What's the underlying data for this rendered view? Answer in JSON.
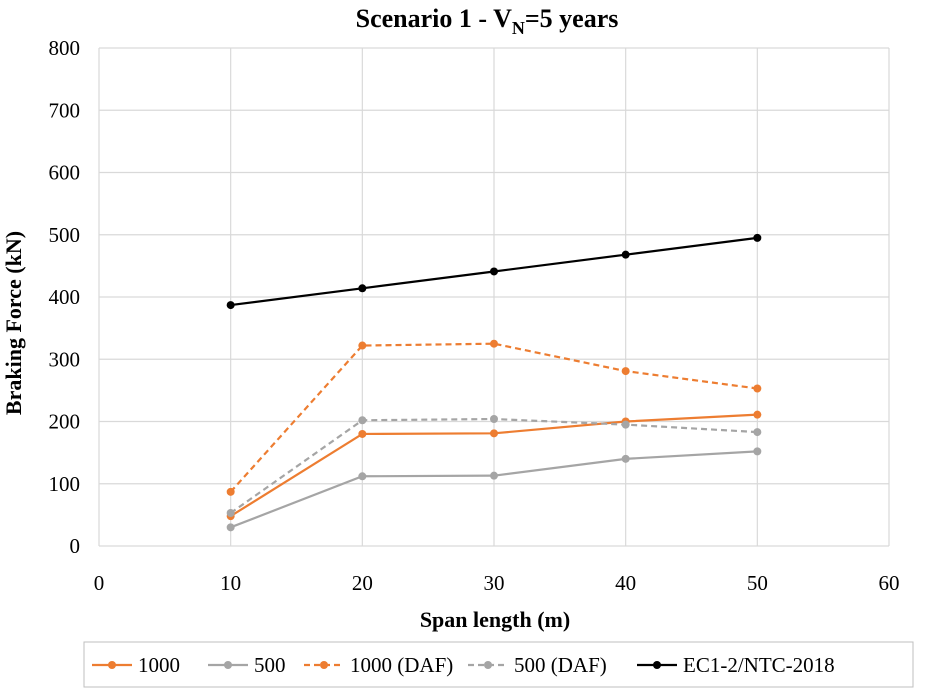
{
  "chart_data": {
    "type": "line",
    "title": "Scenario 1 - V",
    "title_subscript": "N",
    "title_suffix": "=5 years",
    "xlabel": "Span length (m)",
    "ylabel": "Braking Force (kN)",
    "xlim": [
      0,
      60
    ],
    "ylim": [
      0,
      800
    ],
    "xticks": [
      0,
      10,
      20,
      30,
      40,
      50,
      60
    ],
    "yticks": [
      0,
      100,
      200,
      300,
      400,
      500,
      600,
      700,
      800
    ],
    "grid": true,
    "legend_position": "bottom",
    "x": [
      10,
      20,
      30,
      40,
      50
    ],
    "series": [
      {
        "name": "1000",
        "values": [
          48,
          180,
          181,
          200,
          211
        ],
        "color": "#ed7d31",
        "dash": "solid"
      },
      {
        "name": "500",
        "values": [
          30,
          112,
          113,
          140,
          152
        ],
        "color": "#a5a5a5",
        "dash": "solid"
      },
      {
        "name": "1000 (DAF)",
        "values": [
          87,
          322,
          325,
          281,
          253
        ],
        "color": "#ed7d31",
        "dash": "dashed"
      },
      {
        "name": "500 (DAF)",
        "values": [
          53,
          202,
          204,
          195,
          183
        ],
        "color": "#a5a5a5",
        "dash": "dashed"
      },
      {
        "name": "EC1-2/NTC-2018",
        "values": [
          387,
          414,
          441,
          468,
          495
        ],
        "color": "#000000",
        "dash": "solid"
      }
    ]
  }
}
